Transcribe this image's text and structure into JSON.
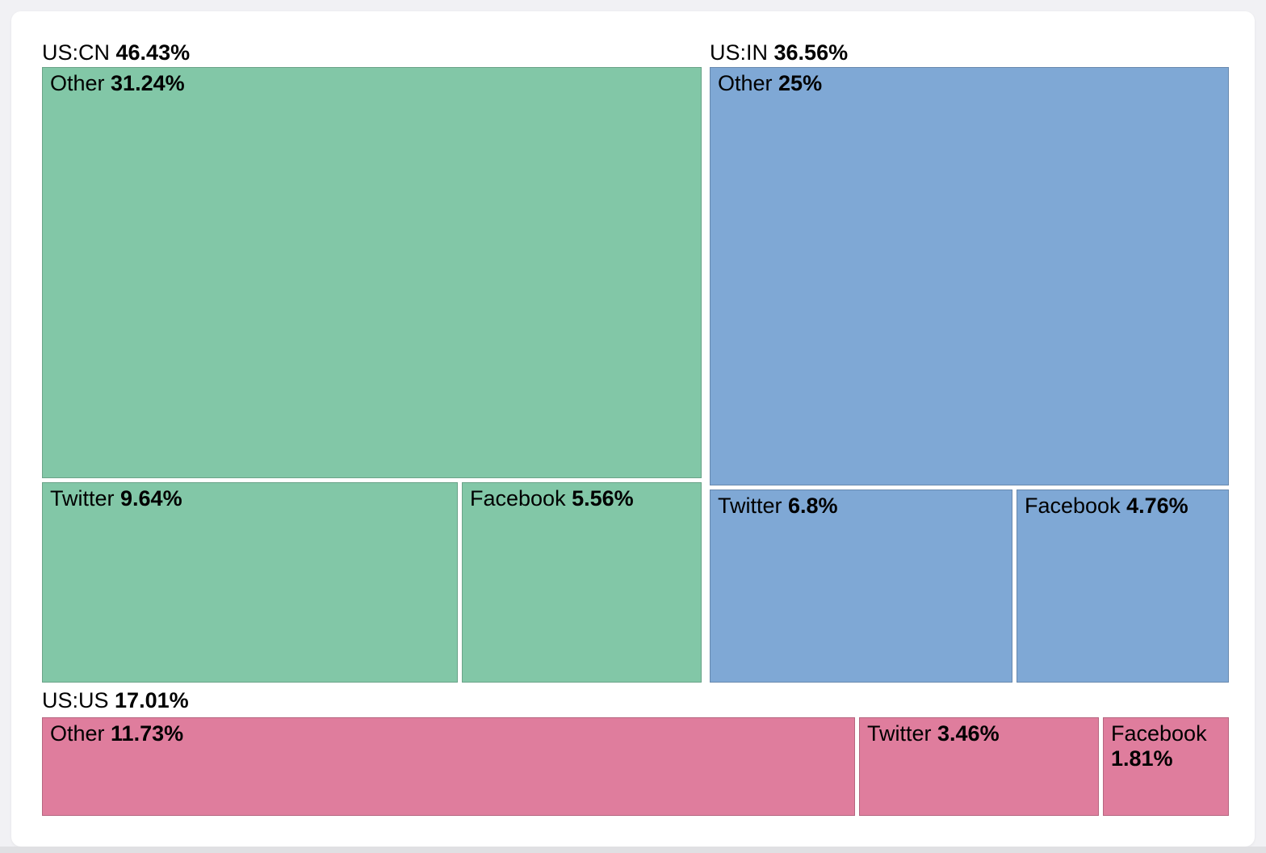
{
  "page": {
    "background_color": "#f1f1f4",
    "bottom_strip_color": "#e0e0e3",
    "card_color": "#ffffff",
    "text_color": "#000000"
  },
  "chart_data": {
    "type": "treemap",
    "title": "",
    "unit": "%",
    "legend": "none",
    "label_style": "name plain, percentage bold, top-left of each tile",
    "groups": [
      {
        "label": "US:CN",
        "value": 46.43,
        "display": "46.43%",
        "color": "#82c7a7",
        "children": [
          {
            "label": "Other",
            "value": 31.24,
            "display": "31.24%"
          },
          {
            "label": "Twitter",
            "value": 9.64,
            "display": "9.64%"
          },
          {
            "label": "Facebook",
            "value": 5.56,
            "display": "5.56%"
          }
        ]
      },
      {
        "label": "US:IN",
        "value": 36.56,
        "display": "36.56%",
        "color": "#7fa8d5",
        "children": [
          {
            "label": "Other",
            "value": 25,
            "display": "25%"
          },
          {
            "label": "Twitter",
            "value": 6.8,
            "display": "6.8%"
          },
          {
            "label": "Facebook",
            "value": 4.76,
            "display": "4.76%"
          }
        ]
      },
      {
        "label": "US:US",
        "value": 17.01,
        "display": "17.01%",
        "color": "#df7d9d",
        "children": [
          {
            "label": "Other",
            "value": 11.73,
            "display": "11.73%"
          },
          {
            "label": "Twitter",
            "value": 3.46,
            "display": "3.46%"
          },
          {
            "label": "Facebook",
            "value": 1.81,
            "display": "1.81%"
          }
        ]
      }
    ],
    "layout_hints": {
      "rows": [
        [
          "US:CN",
          "US:IN"
        ],
        [
          "US:US"
        ]
      ],
      "tall_groups": "big Other tile on top, Twitter + Facebook side by side below",
      "wide_group": "single row of three tiles"
    }
  }
}
